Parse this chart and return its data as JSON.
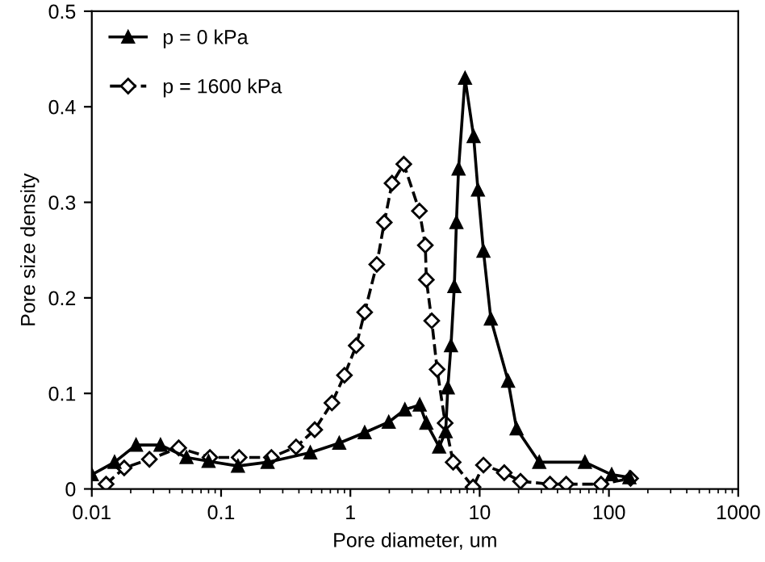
{
  "chart_data": {
    "type": "line",
    "xlabel": "Pore diameter, um",
    "ylabel": "Pore size density",
    "log": "x",
    "xlim": [
      0.01,
      1000
    ],
    "xticks": [
      0.01,
      0.1,
      1,
      10,
      100,
      1000
    ],
    "ylim": [
      0,
      0.5
    ],
    "yticks": [
      0,
      0.1,
      0.2,
      0.3,
      0.4,
      0.5
    ],
    "grid": false,
    "legend": "top left",
    "series": [
      {
        "name": "p = 0 kPa",
        "color": "#000000",
        "marker": "triangle",
        "line_style": "solid",
        "x": [
          0.01,
          0.015,
          0.022,
          0.034,
          0.054,
          0.08,
          0.135,
          0.229,
          0.49,
          0.82,
          1.29,
          1.98,
          2.64,
          3.44,
          3.87,
          4.86,
          5.46,
          5.67,
          6.0,
          6.37,
          6.61,
          6.87,
          7.71,
          8.98,
          9.7,
          10.7,
          12.2,
          16.6,
          19.3,
          28.9,
          65.2,
          105,
          144
        ],
        "values": [
          0.015,
          0.028,
          0.046,
          0.046,
          0.033,
          0.029,
          0.024,
          0.028,
          0.038,
          0.048,
          0.059,
          0.07,
          0.083,
          0.088,
          0.069,
          0.044,
          0.06,
          0.106,
          0.15,
          0.212,
          0.279,
          0.335,
          0.43,
          0.369,
          0.313,
          0.249,
          0.178,
          0.113,
          0.063,
          0.028,
          0.028,
          0.015,
          0.012
        ]
      },
      {
        "name": "p = 1600 kPa",
        "color": "#000000",
        "marker": "diamond",
        "line_style": "dashed",
        "x": [
          0.0129,
          0.0178,
          0.0279,
          0.047,
          0.082,
          0.138,
          0.245,
          0.38,
          0.53,
          0.72,
          0.9,
          1.11,
          1.29,
          1.6,
          1.83,
          2.1,
          2.59,
          3.42,
          3.8,
          3.87,
          4.26,
          4.69,
          5.41,
          6.24,
          8.89,
          10.7,
          15.5,
          20.7,
          35,
          46.7,
          86.9,
          147
        ],
        "values": [
          0.005,
          0.022,
          0.031,
          0.043,
          0.033,
          0.033,
          0.033,
          0.044,
          0.062,
          0.09,
          0.119,
          0.15,
          0.185,
          0.235,
          0.279,
          0.32,
          0.34,
          0.291,
          0.255,
          0.219,
          0.176,
          0.125,
          0.069,
          0.028,
          0.002,
          0.025,
          0.017,
          0.008,
          0.005,
          0.005,
          0.005,
          0.011
        ]
      }
    ]
  }
}
